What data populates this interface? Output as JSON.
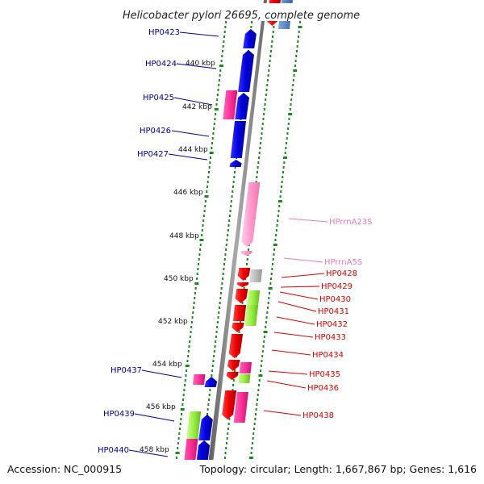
{
  "title": "Helicobacter pylori 26695, complete genome",
  "footer": {
    "accession": "Accession: NC_000915",
    "summary": "Topology: circular; Length: 1,667,867 bp; Genes: 1,616"
  },
  "colors": {
    "forward_gene": "#0000ee",
    "reverse_gene": "#ee0000",
    "rna_gene": "#ff99cc",
    "highlight_pink": "#ff3399",
    "highlight_green": "#99ee44",
    "grey_gene": "#bbbbbb",
    "backbone": "#808080",
    "tick_dots": "#1a8a1a",
    "left_label": "#000099",
    "right_label": "#dd0000",
    "rna_label": "#ee77bb"
  },
  "scale_ticks": [
    "440 kbp",
    "442 kbp",
    "444 kbp",
    "446 kbp",
    "448 kbp",
    "450 kbp",
    "452 kbp",
    "454 kbp",
    "456 kbp",
    "458 kbp"
  ],
  "left_labels": [
    "HP0423",
    "HP0424",
    "HP0425",
    "HP0426",
    "HP0427",
    "HP0437",
    "HP0439",
    "HP0440"
  ],
  "right_labels": [
    "HPrrnA23S",
    "HPrrnA5S",
    "HP0428",
    "HP0429",
    "HP0430",
    "HP0431",
    "HP0432",
    "HP0433",
    "HP0434",
    "HP0435",
    "HP0436",
    "HP0438"
  ]
}
